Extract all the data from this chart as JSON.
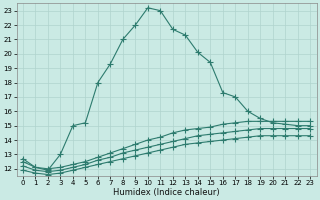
{
  "xlabel": "Humidex (Indice chaleur)",
  "bg_color": "#caeae4",
  "grid_color": "#b0d4ce",
  "line_color": "#2d7b6e",
  "xlim": [
    -0.5,
    23.5
  ],
  "ylim": [
    11.5,
    23.5
  ],
  "xticks": [
    0,
    1,
    2,
    3,
    4,
    5,
    6,
    7,
    8,
    9,
    10,
    11,
    12,
    13,
    14,
    15,
    16,
    17,
    18,
    19,
    20,
    21,
    22,
    23
  ],
  "yticks": [
    12,
    13,
    14,
    15,
    16,
    17,
    18,
    19,
    20,
    21,
    22,
    23
  ],
  "line1_x": [
    0,
    1,
    2,
    3,
    4,
    5,
    6,
    7,
    8,
    9,
    10,
    11,
    12,
    13,
    14,
    15,
    16,
    17,
    18,
    19,
    20,
    21,
    22,
    23
  ],
  "line1_y": [
    12.7,
    12.1,
    11.9,
    13.0,
    15.0,
    15.2,
    18.0,
    19.3,
    21.0,
    22.0,
    23.2,
    23.0,
    21.7,
    21.3,
    20.1,
    19.4,
    17.3,
    17.0,
    16.0,
    15.5,
    15.2,
    15.1,
    15.0,
    15.0
  ],
  "line2_x": [
    0,
    1,
    2,
    3,
    4,
    5,
    6,
    7,
    8,
    9,
    10,
    11,
    12,
    13,
    14,
    15,
    16,
    17,
    18,
    19,
    20,
    21,
    22,
    23
  ],
  "line2_y": [
    12.5,
    12.1,
    12.0,
    12.1,
    12.3,
    12.5,
    12.8,
    13.1,
    13.4,
    13.7,
    14.0,
    14.2,
    14.5,
    14.7,
    14.8,
    14.9,
    15.1,
    15.2,
    15.3,
    15.3,
    15.3,
    15.3,
    15.3,
    15.3
  ],
  "line3_x": [
    0,
    1,
    2,
    3,
    4,
    5,
    6,
    7,
    8,
    9,
    10,
    11,
    12,
    13,
    14,
    15,
    16,
    17,
    18,
    19,
    20,
    21,
    22,
    23
  ],
  "line3_y": [
    12.2,
    11.9,
    11.8,
    11.9,
    12.1,
    12.3,
    12.6,
    12.8,
    13.1,
    13.3,
    13.5,
    13.7,
    13.9,
    14.1,
    14.3,
    14.4,
    14.5,
    14.6,
    14.7,
    14.8,
    14.8,
    14.8,
    14.8,
    14.8
  ],
  "line4_x": [
    0,
    1,
    2,
    3,
    4,
    5,
    6,
    7,
    8,
    9,
    10,
    11,
    12,
    13,
    14,
    15,
    16,
    17,
    18,
    19,
    20,
    21,
    22,
    23
  ],
  "line4_y": [
    11.9,
    11.7,
    11.6,
    11.7,
    11.9,
    12.1,
    12.3,
    12.5,
    12.7,
    12.9,
    13.1,
    13.3,
    13.5,
    13.7,
    13.8,
    13.9,
    14.0,
    14.1,
    14.2,
    14.3,
    14.3,
    14.3,
    14.3,
    14.3
  ]
}
